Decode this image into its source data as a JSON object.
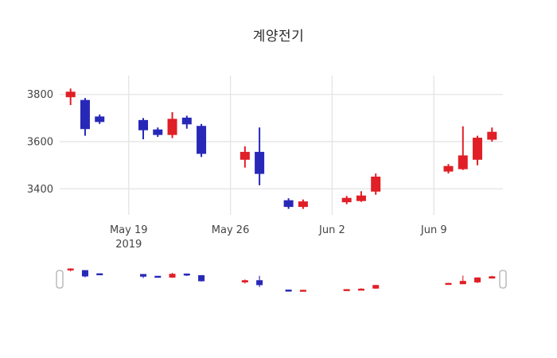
{
  "figure": {
    "background": "#ffffff"
  },
  "chart_data": {
    "type": "candlestick",
    "title": "계양전기",
    "up_color": "#e01f26",
    "down_color": "#2828b8",
    "grid": true,
    "grid_color": "#e4e4e4",
    "text_color": "#444444",
    "legend_position": "none",
    "y_axis": {
      "ticks": [
        3400,
        3600,
        3800
      ],
      "range": [
        3290,
        3880
      ]
    },
    "x_axis": {
      "ticks": [
        {
          "label": "May 19",
          "sublabel": "2019",
          "date": "2019-05-19"
        },
        {
          "label": "May 26",
          "date": "2019-05-26"
        },
        {
          "label": "Jun 2",
          "date": "2019-06-02"
        },
        {
          "label": "Jun 9",
          "date": "2019-06-09"
        }
      ]
    },
    "candles": [
      {
        "date": "2019-05-15",
        "open": 3790,
        "high": 3825,
        "low": 3755,
        "close": 3810
      },
      {
        "date": "2019-05-16",
        "open": 3775,
        "high": 3785,
        "low": 3625,
        "close": 3655
      },
      {
        "date": "2019-05-17",
        "open": 3705,
        "high": 3715,
        "low": 3675,
        "close": 3685
      },
      {
        "date": "2019-05-20",
        "open": 3690,
        "high": 3700,
        "low": 3610,
        "close": 3650
      },
      {
        "date": "2019-05-21",
        "open": 3650,
        "high": 3660,
        "low": 3620,
        "close": 3630
      },
      {
        "date": "2019-05-22",
        "open": 3630,
        "high": 3725,
        "low": 3615,
        "close": 3695
      },
      {
        "date": "2019-05-23",
        "open": 3700,
        "high": 3710,
        "low": 3655,
        "close": 3675
      },
      {
        "date": "2019-05-24",
        "open": 3665,
        "high": 3675,
        "low": 3535,
        "close": 3550
      },
      {
        "date": "2019-05-27",
        "open": 3525,
        "high": 3580,
        "low": 3490,
        "close": 3555
      },
      {
        "date": "2019-05-28",
        "open": 3555,
        "high": 3660,
        "low": 3415,
        "close": 3465
      },
      {
        "date": "2019-05-30",
        "open": 3350,
        "high": 3360,
        "low": 3315,
        "close": 3325
      },
      {
        "date": "2019-05-31",
        "open": 3325,
        "high": 3355,
        "low": 3315,
        "close": 3345
      },
      {
        "date": "2019-06-03",
        "open": 3345,
        "high": 3370,
        "low": 3335,
        "close": 3360
      },
      {
        "date": "2019-06-04",
        "open": 3350,
        "high": 3390,
        "low": 3345,
        "close": 3370
      },
      {
        "date": "2019-06-05",
        "open": 3390,
        "high": 3465,
        "low": 3375,
        "close": 3450
      },
      {
        "date": "2019-06-10",
        "open": 3475,
        "high": 3505,
        "low": 3465,
        "close": 3495
      },
      {
        "date": "2019-06-11",
        "open": 3485,
        "high": 3665,
        "low": 3480,
        "close": 3540
      },
      {
        "date": "2019-06-12",
        "open": 3525,
        "high": 3625,
        "low": 3500,
        "close": 3615
      },
      {
        "date": "2019-06-13",
        "open": 3610,
        "high": 3660,
        "low": 3600,
        "close": 3640
      }
    ],
    "rangeslider": {
      "visible": true
    }
  }
}
